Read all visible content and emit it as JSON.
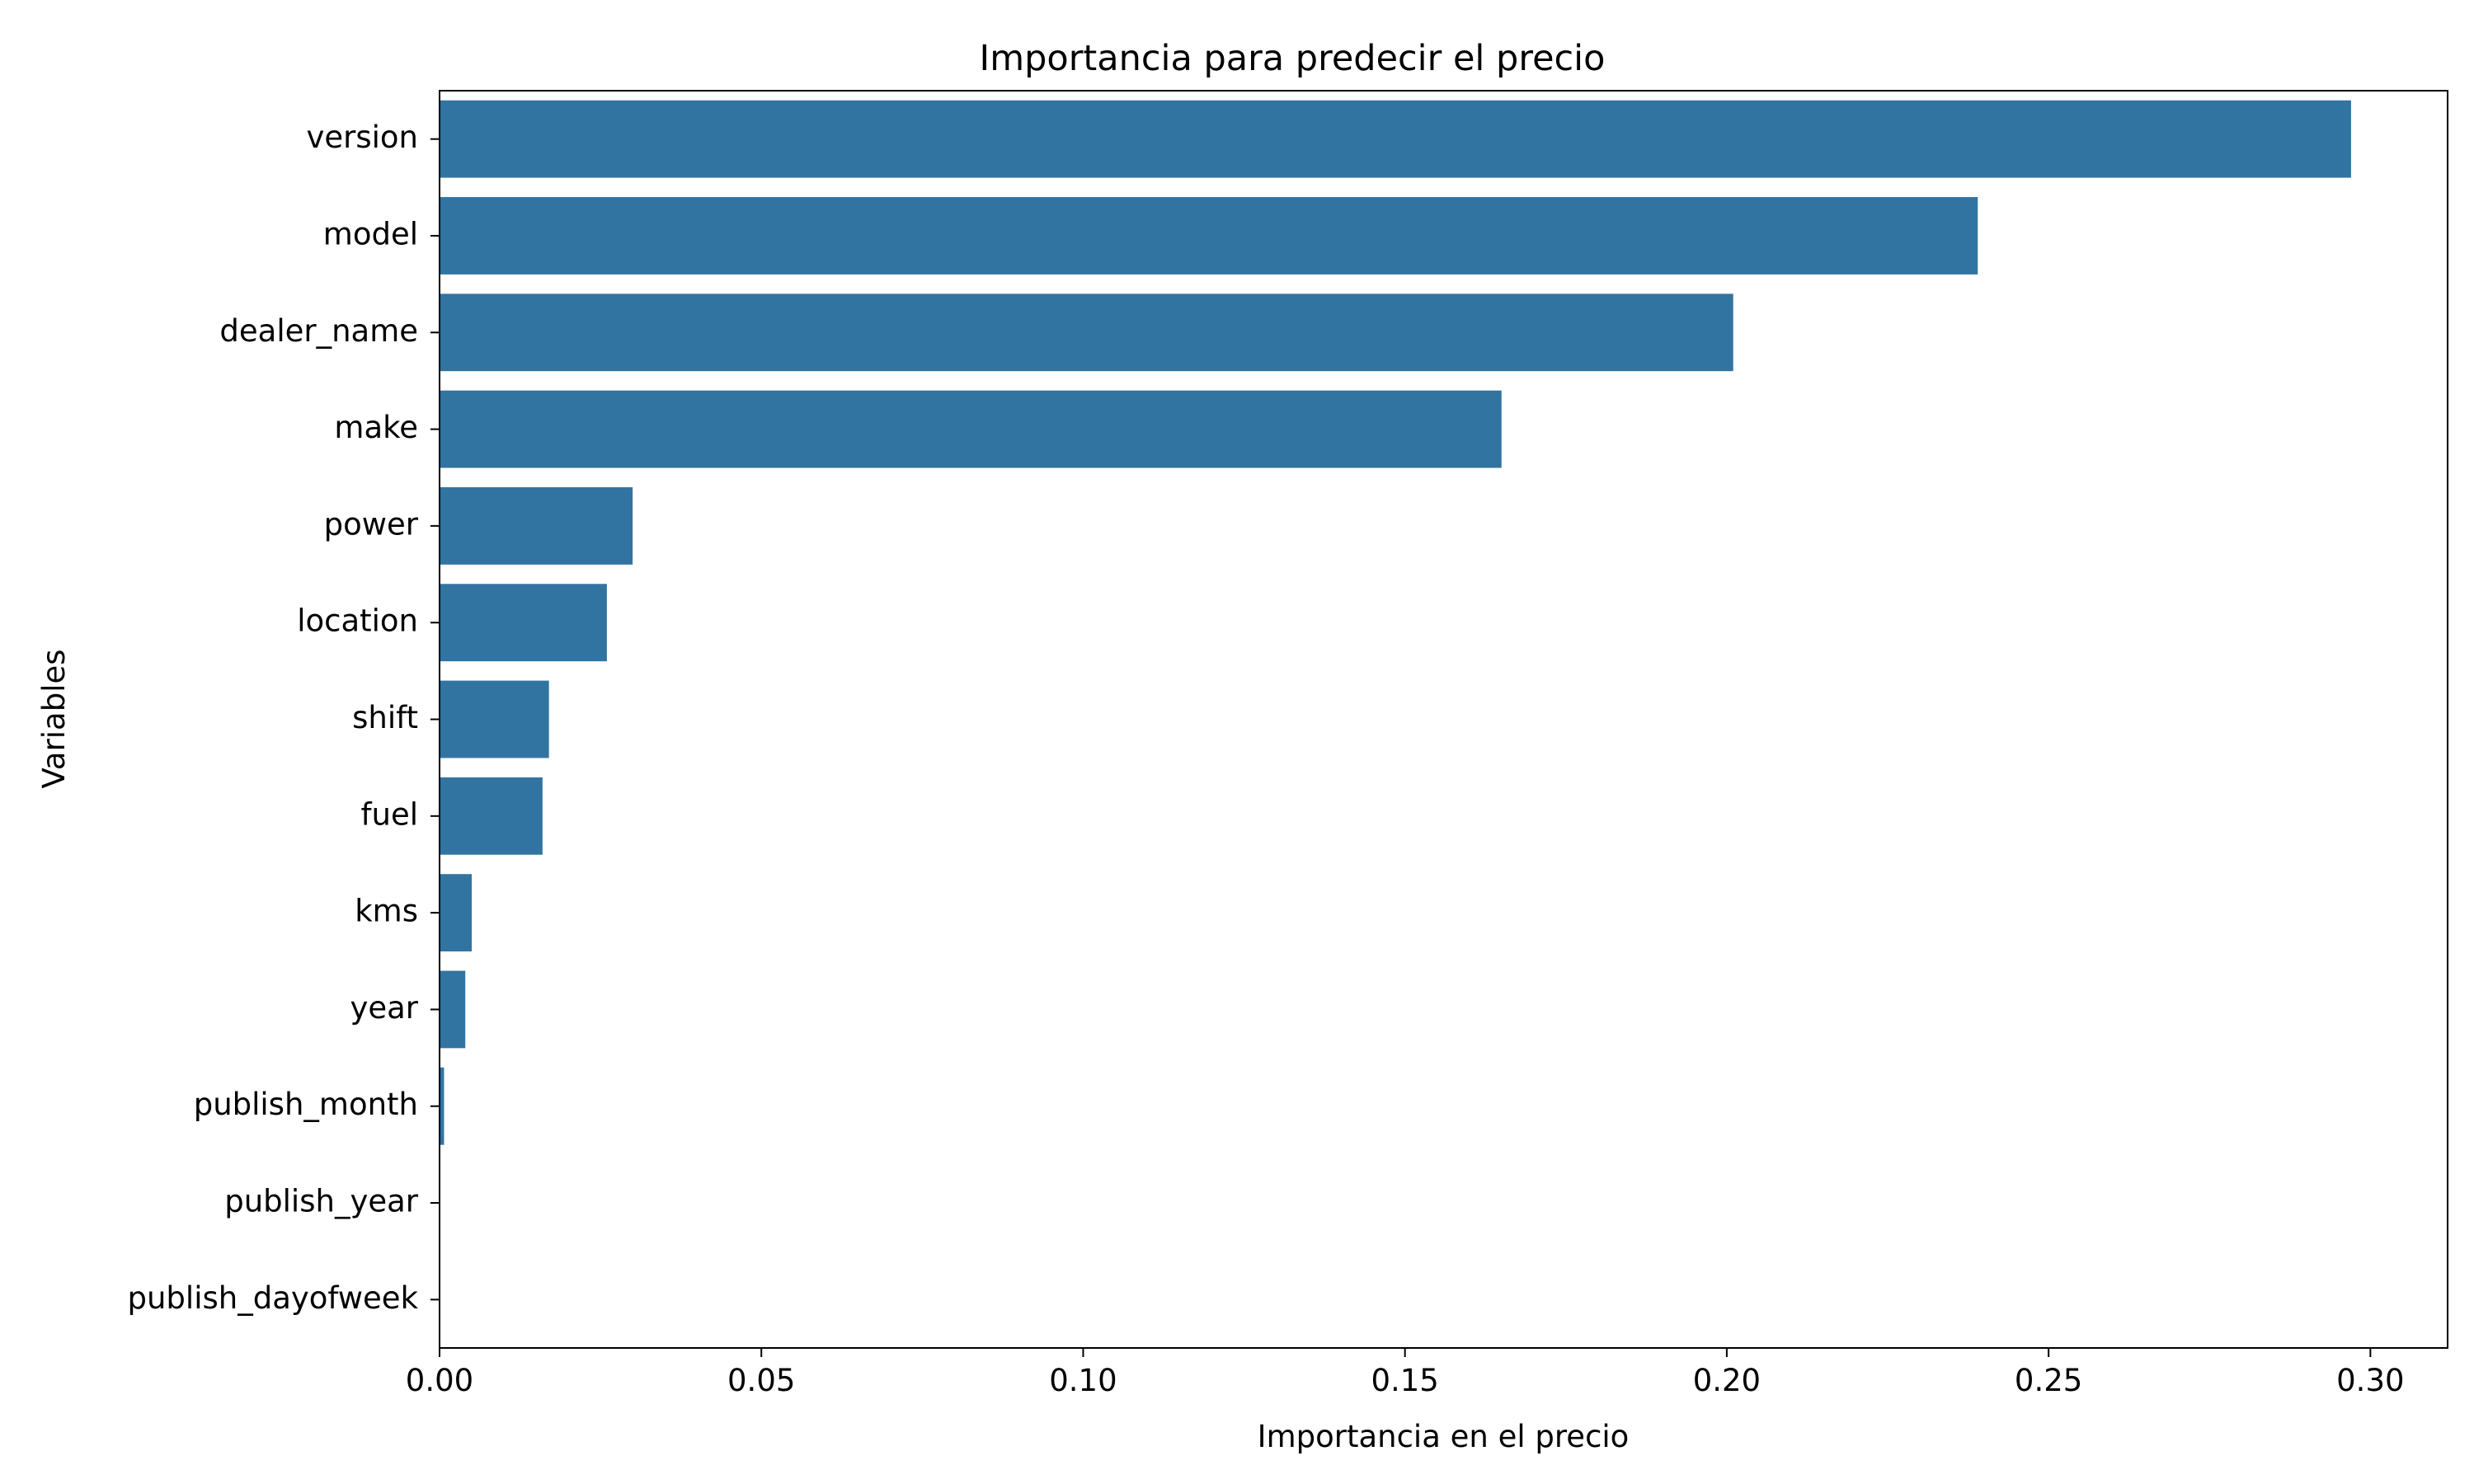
{
  "chart_data": {
    "type": "bar",
    "orientation": "horizontal",
    "title": "Importancia para predecir el precio",
    "xlabel": "Importancia en el precio",
    "ylabel": "Variables",
    "categories": [
      "version",
      "model",
      "dealer_name",
      "make",
      "power",
      "location",
      "shift",
      "fuel",
      "kms",
      "year",
      "publish_month",
      "publish_year",
      "publish_dayofweek"
    ],
    "values": [
      0.297,
      0.239,
      0.201,
      0.165,
      0.03,
      0.026,
      0.017,
      0.016,
      0.005,
      0.004,
      0.0007,
      0.0,
      0.0
    ],
    "xlim": [
      0.0,
      0.312
    ],
    "xticks": [
      0.0,
      0.05,
      0.1,
      0.15,
      0.2,
      0.25,
      0.3
    ],
    "xtick_labels": [
      "0.00",
      "0.05",
      "0.10",
      "0.15",
      "0.20",
      "0.25",
      "0.30"
    ],
    "grid": false,
    "legend": "none",
    "bar_color": "#3274a1"
  }
}
